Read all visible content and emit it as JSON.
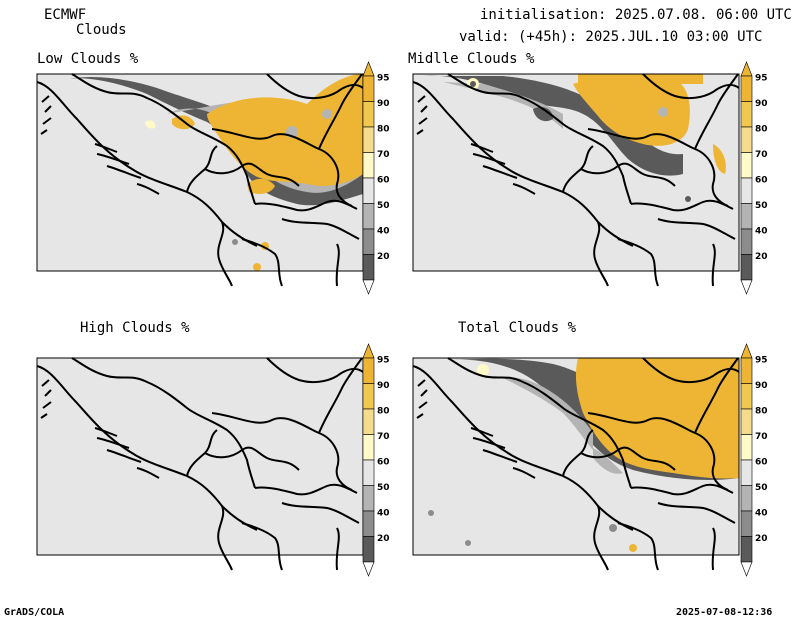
{
  "header": {
    "model": "ECMWF",
    "product": "Clouds",
    "init": "initialisation: 2025.07.08. 06:00 UTC",
    "valid": "valid: (+45h): 2025.JUL.10 03:00 UTC"
  },
  "panels": [
    {
      "title": "Low Clouds %"
    },
    {
      "title": "Midlle Clouds %"
    },
    {
      "title": "High Clouds %"
    },
    {
      "title": "Total Clouds %"
    }
  ],
  "colorbar": {
    "levels": [
      "20",
      "40",
      "50",
      "60",
      "70",
      "80",
      "90",
      "95"
    ],
    "colors": {
      "lt20": "#ffffff",
      "b20_40": "#5a5a5a",
      "b40_50": "#8c8c8c",
      "b50_60": "#b4b4b4",
      "b60_70": "#e6e6e6",
      "b70_80": "#fffac8",
      "b80_90": "#f5dc8c",
      "b90_95": "#f0c850",
      "gt95": "#eeb535"
    }
  },
  "footer": {
    "left": "GrADS/COLA",
    "right": "2025-07-08-12:36"
  }
}
